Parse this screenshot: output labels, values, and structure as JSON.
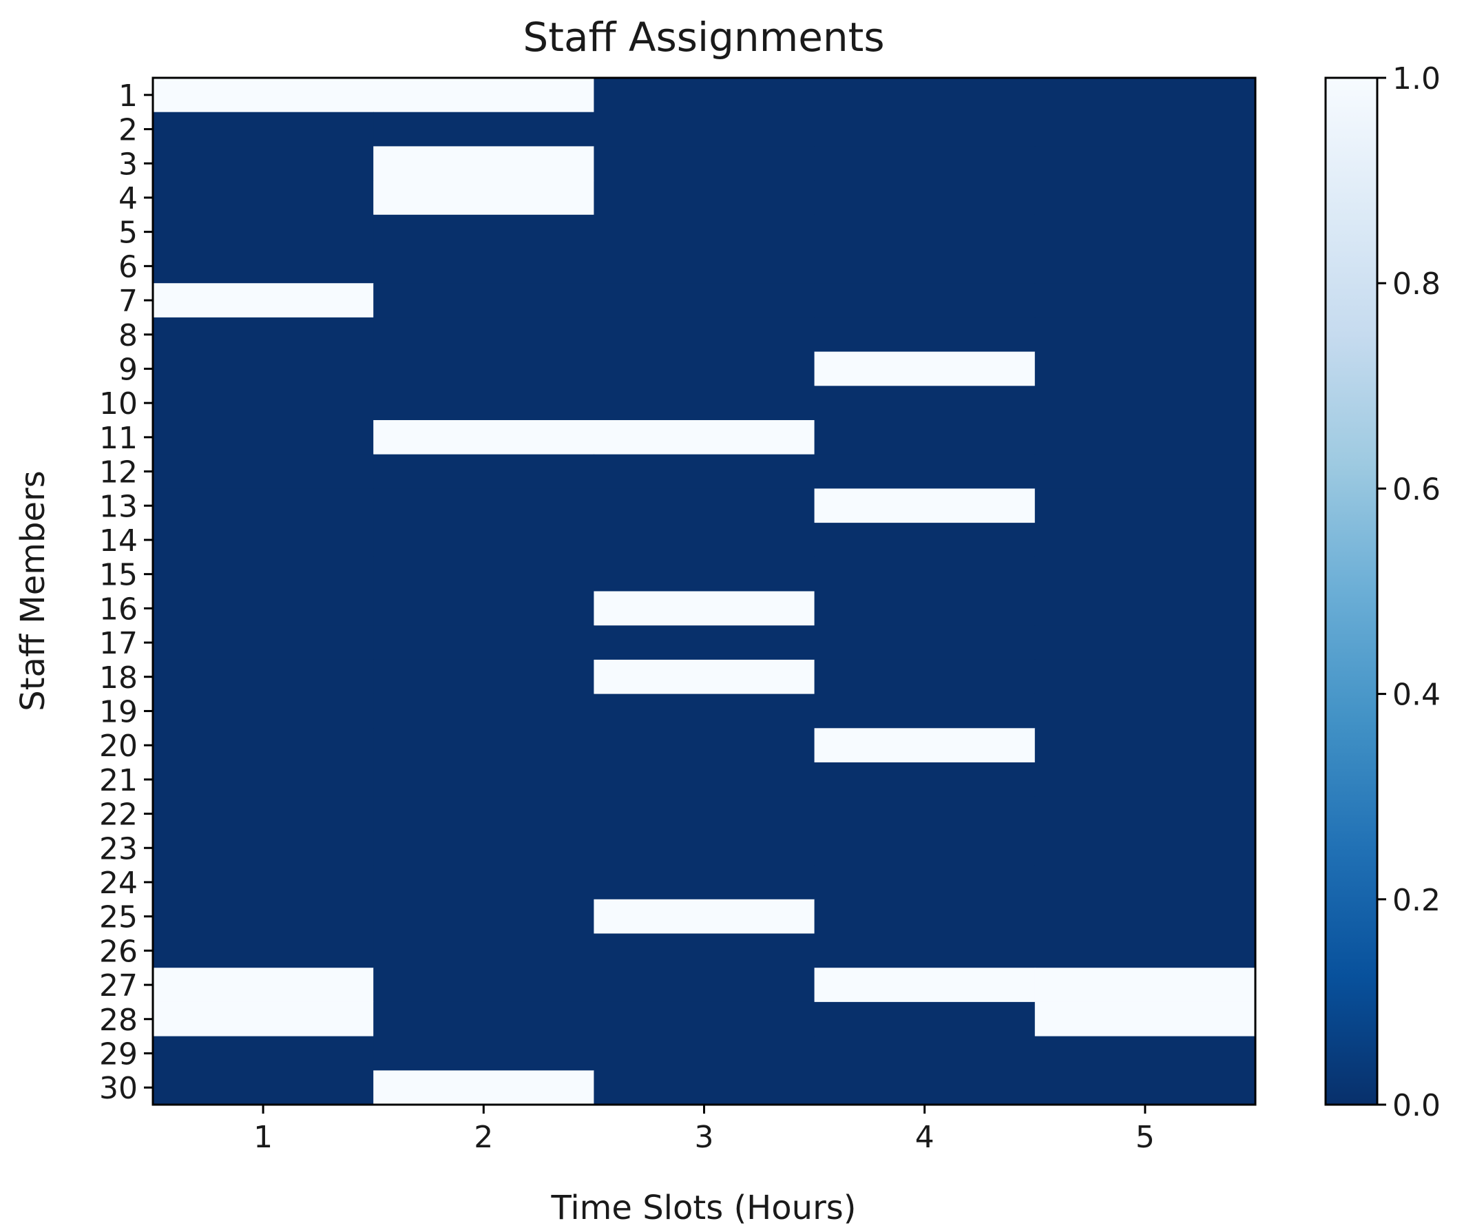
{
  "chart_data": {
    "type": "heatmap",
    "title": "Staff Assignments",
    "xlabel": "Time Slots (Hours)",
    "ylabel": "Staff Members",
    "x_categories": [
      "1",
      "2",
      "3",
      "4",
      "5"
    ],
    "y_categories": [
      "1",
      "2",
      "3",
      "4",
      "5",
      "6",
      "7",
      "8",
      "9",
      "10",
      "11",
      "12",
      "13",
      "14",
      "15",
      "16",
      "17",
      "18",
      "19",
      "20",
      "21",
      "22",
      "23",
      "24",
      "25",
      "26",
      "27",
      "28",
      "29",
      "30"
    ],
    "values": [
      [
        1,
        1,
        0,
        0,
        0
      ],
      [
        0,
        0,
        0,
        0,
        0
      ],
      [
        0,
        1,
        0,
        0,
        0
      ],
      [
        0,
        1,
        0,
        0,
        0
      ],
      [
        0,
        0,
        0,
        0,
        0
      ],
      [
        0,
        0,
        0,
        0,
        0
      ],
      [
        1,
        0,
        0,
        0,
        0
      ],
      [
        0,
        0,
        0,
        0,
        0
      ],
      [
        0,
        0,
        0,
        1,
        0
      ],
      [
        0,
        0,
        0,
        0,
        0
      ],
      [
        0,
        1,
        1,
        0,
        0
      ],
      [
        0,
        0,
        0,
        0,
        0
      ],
      [
        0,
        0,
        0,
        1,
        0
      ],
      [
        0,
        0,
        0,
        0,
        0
      ],
      [
        0,
        0,
        0,
        0,
        0
      ],
      [
        0,
        0,
        1,
        0,
        0
      ],
      [
        0,
        0,
        0,
        0,
        0
      ],
      [
        0,
        0,
        1,
        0,
        0
      ],
      [
        0,
        0,
        0,
        0,
        0
      ],
      [
        0,
        0,
        0,
        1,
        0
      ],
      [
        0,
        0,
        0,
        0,
        0
      ],
      [
        0,
        0,
        0,
        0,
        0
      ],
      [
        0,
        0,
        0,
        0,
        0
      ],
      [
        0,
        0,
        0,
        0,
        0
      ],
      [
        0,
        0,
        1,
        0,
        0
      ],
      [
        0,
        0,
        0,
        0,
        0
      ],
      [
        1,
        0,
        0,
        1,
        1
      ],
      [
        1,
        0,
        0,
        0,
        1
      ],
      [
        0,
        0,
        0,
        0,
        0
      ],
      [
        0,
        1,
        0,
        0,
        0
      ]
    ],
    "colorbar": {
      "min": 0.0,
      "max": 1.0,
      "ticks": [
        "0.0",
        "0.2",
        "0.4",
        "0.6",
        "0.8",
        "1.0"
      ],
      "colormap": "Blues_r",
      "low_color": "#08306b",
      "high_color": "#f7fbff"
    },
    "grid": false
  }
}
